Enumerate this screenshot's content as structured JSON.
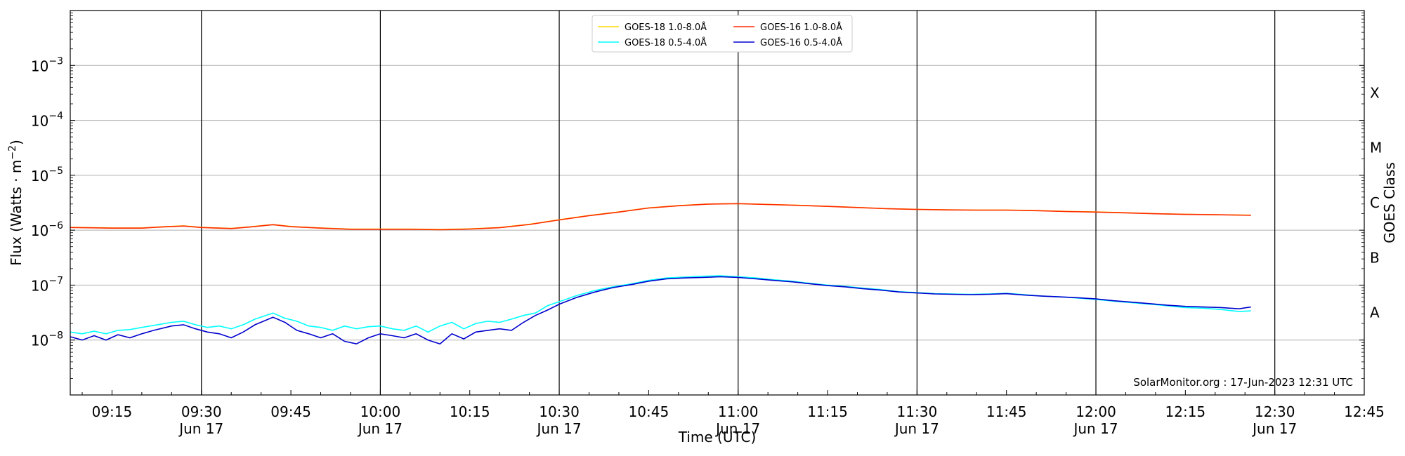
{
  "chart_data": {
    "type": "line",
    "xlabel": "Time (UTC)",
    "ylabel": "Flux (Watts · m",
    "ylabel_sup": "−2",
    "ylabel_close": ")",
    "right_label": "GOES Class",
    "x_range": [
      "09:08",
      "12:45"
    ],
    "x_ticks": [
      {
        "time": "09:15",
        "label": "09:15",
        "date": ""
      },
      {
        "time": "09:30",
        "label": "09:30",
        "date": "Jun 17"
      },
      {
        "time": "09:45",
        "label": "09:45",
        "date": ""
      },
      {
        "time": "10:00",
        "label": "10:00",
        "date": "Jun 17"
      },
      {
        "time": "10:15",
        "label": "10:15",
        "date": ""
      },
      {
        "time": "10:30",
        "label": "10:30",
        "date": "Jun 17"
      },
      {
        "time": "10:45",
        "label": "10:45",
        "date": ""
      },
      {
        "time": "11:00",
        "label": "11:00",
        "date": "Jun 17"
      },
      {
        "time": "11:15",
        "label": "11:15",
        "date": ""
      },
      {
        "time": "11:30",
        "label": "11:30",
        "date": "Jun 17"
      },
      {
        "time": "11:45",
        "label": "11:45",
        "date": ""
      },
      {
        "time": "12:00",
        "label": "12:00",
        "date": "Jun 17"
      },
      {
        "time": "12:15",
        "label": "12:15",
        "date": ""
      },
      {
        "time": "12:30",
        "label": "12:30",
        "date": "Jun 17"
      },
      {
        "time": "12:45",
        "label": "12:45",
        "date": ""
      }
    ],
    "y_scale": "log",
    "y_range": [
      1e-09,
      0.01
    ],
    "y_ticks": [
      {
        "value": 1e-08,
        "exp": "−8"
      },
      {
        "value": 1e-07,
        "exp": "−7"
      },
      {
        "value": 1e-06,
        "exp": "−6"
      },
      {
        "value": 1e-05,
        "exp": "−5"
      },
      {
        "value": 0.0001,
        "exp": "−4"
      },
      {
        "value": 0.001,
        "exp": "−3"
      }
    ],
    "y_tick_base": "10",
    "goes_classes": [
      {
        "label": "A",
        "value": 3.16e-08
      },
      {
        "label": "B",
        "value": 3.16e-07
      },
      {
        "label": "C",
        "value": 3.16e-06
      },
      {
        "label": "M",
        "value": 3.16e-05
      },
      {
        "label": "X",
        "value": 0.000316
      }
    ],
    "grid": true,
    "legend_position": "top-center",
    "series": [
      {
        "name": "GOES-18 1.0-8.0Å",
        "color": "#FFD700",
        "points": [
          [
            "09:08",
            1.13e-06
          ],
          [
            "09:15",
            1.1e-06
          ],
          [
            "09:20",
            1.1e-06
          ],
          [
            "09:23",
            1.15e-06
          ],
          [
            "09:27",
            1.2e-06
          ],
          [
            "09:30",
            1.13e-06
          ],
          [
            "09:35",
            1.08e-06
          ],
          [
            "09:38",
            1.15e-06
          ],
          [
            "09:42",
            1.27e-06
          ],
          [
            "09:45",
            1.17e-06
          ],
          [
            "09:50",
            1.1e-06
          ],
          [
            "09:55",
            1.05e-06
          ],
          [
            "10:00",
            1.05e-06
          ],
          [
            "10:05",
            1.05e-06
          ],
          [
            "10:10",
            1.03e-06
          ],
          [
            "10:15",
            1.06e-06
          ],
          [
            "10:20",
            1.12e-06
          ],
          [
            "10:25",
            1.28e-06
          ],
          [
            "10:30",
            1.55e-06
          ],
          [
            "10:35",
            1.85e-06
          ],
          [
            "10:40",
            2.15e-06
          ],
          [
            "10:45",
            2.55e-06
          ],
          [
            "10:50",
            2.8e-06
          ],
          [
            "10:55",
            3e-06
          ],
          [
            "11:00",
            3.05e-06
          ],
          [
            "11:05",
            2.95e-06
          ],
          [
            "11:10",
            2.85e-06
          ],
          [
            "11:15",
            2.72e-06
          ],
          [
            "11:20",
            2.6e-06
          ],
          [
            "11:25",
            2.47e-06
          ],
          [
            "11:30",
            2.4e-06
          ],
          [
            "11:35",
            2.35e-06
          ],
          [
            "11:40",
            2.33e-06
          ],
          [
            "11:45",
            2.33e-06
          ],
          [
            "11:50",
            2.28e-06
          ],
          [
            "11:55",
            2.2e-06
          ],
          [
            "12:00",
            2.15e-06
          ],
          [
            "12:05",
            2.08e-06
          ],
          [
            "12:10",
            2e-06
          ],
          [
            "12:15",
            1.95e-06
          ],
          [
            "12:20",
            1.92e-06
          ],
          [
            "12:26",
            1.88e-06
          ]
        ]
      },
      {
        "name": "GOES-16 1.0-8.0Å",
        "color": "#FF2A00",
        "points": [
          [
            "09:08",
            1.12e-06
          ],
          [
            "09:15",
            1.09e-06
          ],
          [
            "09:20",
            1.09e-06
          ],
          [
            "09:23",
            1.14e-06
          ],
          [
            "09:27",
            1.19e-06
          ],
          [
            "09:30",
            1.12e-06
          ],
          [
            "09:35",
            1.07e-06
          ],
          [
            "09:38",
            1.14e-06
          ],
          [
            "09:42",
            1.26e-06
          ],
          [
            "09:45",
            1.16e-06
          ],
          [
            "09:50",
            1.09e-06
          ],
          [
            "09:55",
            1.04e-06
          ],
          [
            "10:00",
            1.04e-06
          ],
          [
            "10:05",
            1.04e-06
          ],
          [
            "10:10",
            1.02e-06
          ],
          [
            "10:15",
            1.05e-06
          ],
          [
            "10:20",
            1.11e-06
          ],
          [
            "10:25",
            1.27e-06
          ],
          [
            "10:30",
            1.54e-06
          ],
          [
            "10:35",
            1.84e-06
          ],
          [
            "10:40",
            2.14e-06
          ],
          [
            "10:45",
            2.54e-06
          ],
          [
            "10:50",
            2.79e-06
          ],
          [
            "10:55",
            2.99e-06
          ],
          [
            "11:00",
            3.04e-06
          ],
          [
            "11:05",
            2.94e-06
          ],
          [
            "11:10",
            2.84e-06
          ],
          [
            "11:15",
            2.71e-06
          ],
          [
            "11:20",
            2.59e-06
          ],
          [
            "11:25",
            2.46e-06
          ],
          [
            "11:30",
            2.39e-06
          ],
          [
            "11:35",
            2.34e-06
          ],
          [
            "11:40",
            2.32e-06
          ],
          [
            "11:45",
            2.32e-06
          ],
          [
            "11:50",
            2.27e-06
          ],
          [
            "11:55",
            2.19e-06
          ],
          [
            "12:00",
            2.14e-06
          ],
          [
            "12:05",
            2.07e-06
          ],
          [
            "12:10",
            1.99e-06
          ],
          [
            "12:15",
            1.94e-06
          ],
          [
            "12:20",
            1.91e-06
          ],
          [
            "12:26",
            1.87e-06
          ]
        ]
      },
      {
        "name": "GOES-18 0.5-4.0Å",
        "color": "#00FFFF",
        "points": [
          [
            "09:08",
            1.4e-08
          ],
          [
            "09:10",
            1.3e-08
          ],
          [
            "09:12",
            1.45e-08
          ],
          [
            "09:14",
            1.3e-08
          ],
          [
            "09:16",
            1.5e-08
          ],
          [
            "09:18",
            1.55e-08
          ],
          [
            "09:20",
            1.7e-08
          ],
          [
            "09:22",
            1.85e-08
          ],
          [
            "09:25",
            2.1e-08
          ],
          [
            "09:27",
            2.2e-08
          ],
          [
            "09:29",
            1.9e-08
          ],
          [
            "09:31",
            1.7e-08
          ],
          [
            "09:33",
            1.8e-08
          ],
          [
            "09:35",
            1.6e-08
          ],
          [
            "09:37",
            1.9e-08
          ],
          [
            "09:39",
            2.4e-08
          ],
          [
            "09:42",
            3.1e-08
          ],
          [
            "09:44",
            2.5e-08
          ],
          [
            "09:46",
            2.2e-08
          ],
          [
            "09:48",
            1.8e-08
          ],
          [
            "09:50",
            1.7e-08
          ],
          [
            "09:52",
            1.5e-08
          ],
          [
            "09:54",
            1.8e-08
          ],
          [
            "09:56",
            1.6e-08
          ],
          [
            "09:58",
            1.75e-08
          ],
          [
            "10:00",
            1.8e-08
          ],
          [
            "10:02",
            1.6e-08
          ],
          [
            "10:04",
            1.5e-08
          ],
          [
            "10:06",
            1.8e-08
          ],
          [
            "10:08",
            1.4e-08
          ],
          [
            "10:10",
            1.8e-08
          ],
          [
            "10:12",
            2.1e-08
          ],
          [
            "10:14",
            1.6e-08
          ],
          [
            "10:16",
            2e-08
          ],
          [
            "10:18",
            2.2e-08
          ],
          [
            "10:20",
            2.1e-08
          ],
          [
            "10:22",
            2.4e-08
          ],
          [
            "10:24",
            2.8e-08
          ],
          [
            "10:26",
            3.1e-08
          ],
          [
            "10:28",
            4.2e-08
          ],
          [
            "10:30",
            5e-08
          ],
          [
            "10:33",
            6.5e-08
          ],
          [
            "10:36",
            8e-08
          ],
          [
            "10:39",
            9.3e-08
          ],
          [
            "10:42",
            1.05e-07
          ],
          [
            "10:45",
            1.22e-07
          ],
          [
            "10:48",
            1.35e-07
          ],
          [
            "10:51",
            1.4e-07
          ],
          [
            "10:54",
            1.45e-07
          ],
          [
            "10:57",
            1.48e-07
          ],
          [
            "11:00",
            1.42e-07
          ],
          [
            "11:03",
            1.35e-07
          ],
          [
            "11:06",
            1.25e-07
          ],
          [
            "11:09",
            1.18e-07
          ],
          [
            "11:12",
            1.08e-07
          ],
          [
            "11:15",
            1e-07
          ],
          [
            "11:18",
            9.5e-08
          ],
          [
            "11:21",
            8.8e-08
          ],
          [
            "11:24",
            8.3e-08
          ],
          [
            "11:27",
            7.6e-08
          ],
          [
            "11:30",
            7.3e-08
          ],
          [
            "11:33",
            7e-08
          ],
          [
            "11:36",
            6.9e-08
          ],
          [
            "11:39",
            6.8e-08
          ],
          [
            "11:42",
            6.9e-08
          ],
          [
            "11:45",
            7.1e-08
          ],
          [
            "11:48",
            6.7e-08
          ],
          [
            "11:51",
            6.3e-08
          ],
          [
            "11:54",
            6.1e-08
          ],
          [
            "11:57",
            5.8e-08
          ],
          [
            "12:00",
            5.5e-08
          ],
          [
            "12:03",
            5.1e-08
          ],
          [
            "12:06",
            4.8e-08
          ],
          [
            "12:09",
            4.5e-08
          ],
          [
            "12:12",
            4.2e-08
          ],
          [
            "12:15",
            3.9e-08
          ],
          [
            "12:18",
            3.8e-08
          ],
          [
            "12:21",
            3.6e-08
          ],
          [
            "12:24",
            3.3e-08
          ],
          [
            "12:26",
            3.4e-08
          ]
        ]
      },
      {
        "name": "GOES-16 0.5-4.0Å",
        "color": "#0000CD",
        "points": [
          [
            "09:08",
            1.15e-08
          ],
          [
            "09:10",
            1e-08
          ],
          [
            "09:12",
            1.2e-08
          ],
          [
            "09:14",
            1e-08
          ],
          [
            "09:16",
            1.25e-08
          ],
          [
            "09:18",
            1.1e-08
          ],
          [
            "09:20",
            1.3e-08
          ],
          [
            "09:22",
            1.5e-08
          ],
          [
            "09:25",
            1.8e-08
          ],
          [
            "09:27",
            1.9e-08
          ],
          [
            "09:29",
            1.6e-08
          ],
          [
            "09:31",
            1.4e-08
          ],
          [
            "09:33",
            1.3e-08
          ],
          [
            "09:35",
            1.1e-08
          ],
          [
            "09:37",
            1.4e-08
          ],
          [
            "09:39",
            1.9e-08
          ],
          [
            "09:42",
            2.6e-08
          ],
          [
            "09:44",
            2.1e-08
          ],
          [
            "09:46",
            1.5e-08
          ],
          [
            "09:48",
            1.3e-08
          ],
          [
            "09:50",
            1.1e-08
          ],
          [
            "09:52",
            1.3e-08
          ],
          [
            "09:54",
            9.5e-09
          ],
          [
            "09:56",
            8.5e-09
          ],
          [
            "09:58",
            1.1e-08
          ],
          [
            "10:00",
            1.3e-08
          ],
          [
            "10:02",
            1.2e-08
          ],
          [
            "10:04",
            1.1e-08
          ],
          [
            "10:06",
            1.3e-08
          ],
          [
            "10:08",
            1e-08
          ],
          [
            "10:10",
            8.5e-09
          ],
          [
            "10:12",
            1.3e-08
          ],
          [
            "10:14",
            1.05e-08
          ],
          [
            "10:16",
            1.4e-08
          ],
          [
            "10:18",
            1.5e-08
          ],
          [
            "10:20",
            1.6e-08
          ],
          [
            "10:22",
            1.5e-08
          ],
          [
            "10:24",
            2.1e-08
          ],
          [
            "10:26",
            2.8e-08
          ],
          [
            "10:28",
            3.5e-08
          ],
          [
            "10:30",
            4.5e-08
          ],
          [
            "10:33",
            6e-08
          ],
          [
            "10:36",
            7.5e-08
          ],
          [
            "10:39",
            9e-08
          ],
          [
            "10:42",
            1.02e-07
          ],
          [
            "10:45",
            1.18e-07
          ],
          [
            "10:48",
            1.3e-07
          ],
          [
            "10:51",
            1.35e-07
          ],
          [
            "10:54",
            1.38e-07
          ],
          [
            "10:57",
            1.42e-07
          ],
          [
            "11:00",
            1.38e-07
          ],
          [
            "11:03",
            1.3e-07
          ],
          [
            "11:06",
            1.22e-07
          ],
          [
            "11:09",
            1.15e-07
          ],
          [
            "11:12",
            1.06e-07
          ],
          [
            "11:15",
            9.8e-08
          ],
          [
            "11:18",
            9.3e-08
          ],
          [
            "11:21",
            8.6e-08
          ],
          [
            "11:24",
            8.1e-08
          ],
          [
            "11:27",
            7.5e-08
          ],
          [
            "11:30",
            7.2e-08
          ],
          [
            "11:33",
            6.9e-08
          ],
          [
            "11:36",
            6.8e-08
          ],
          [
            "11:39",
            6.7e-08
          ],
          [
            "11:42",
            6.8e-08
          ],
          [
            "11:45",
            7e-08
          ],
          [
            "11:48",
            6.6e-08
          ],
          [
            "11:51",
            6.3e-08
          ],
          [
            "11:54",
            6.1e-08
          ],
          [
            "11:57",
            5.9e-08
          ],
          [
            "12:00",
            5.6e-08
          ],
          [
            "12:03",
            5.2e-08
          ],
          [
            "12:06",
            4.9e-08
          ],
          [
            "12:09",
            4.6e-08
          ],
          [
            "12:12",
            4.3e-08
          ],
          [
            "12:15",
            4.1e-08
          ],
          [
            "12:18",
            4e-08
          ],
          [
            "12:21",
            3.9e-08
          ],
          [
            "12:24",
            3.7e-08
          ],
          [
            "12:26",
            4e-08
          ]
        ]
      }
    ],
    "legend_order": [
      0,
      2,
      1,
      3
    ],
    "credit": "SolarMonitor.org : 17-Jun-2023 12:31 UTC"
  }
}
